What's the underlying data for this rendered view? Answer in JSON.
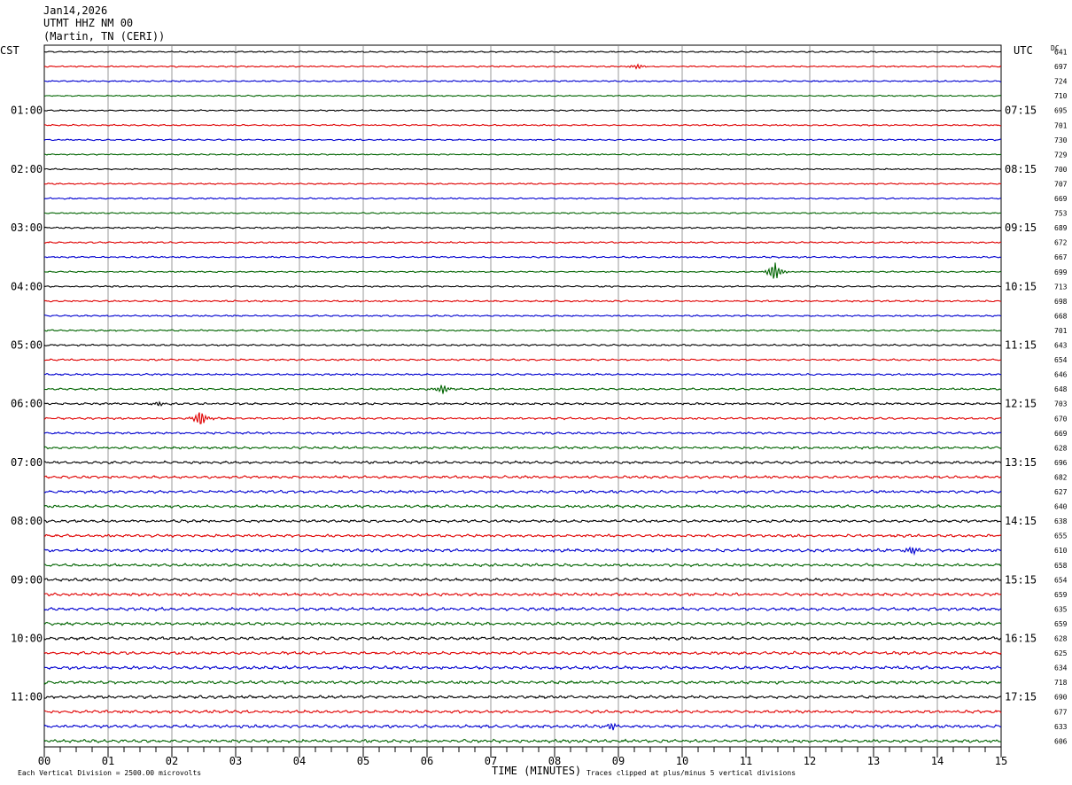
{
  "header": {
    "date": "Jan14,2026",
    "station": "UTMT HHZ NM 00",
    "location": "(Martin, TN (CERI))"
  },
  "left_timezone": "CST",
  "right_timezone": "UTC",
  "dc_label": "DC",
  "footer": {
    "scale_note": "Each Vertical Division = 2500.00 microvolts",
    "xlabel": "TIME (MINUTES)",
    "clip_note": "Traces clipped at plus/minus 5 vertical divisions"
  },
  "colors": {
    "trace_cycle": [
      "#000000",
      "#e00000",
      "#0000d0",
      "#006400"
    ],
    "grid": "#808080"
  },
  "chart_data": {
    "type": "line",
    "title": "UTMT HHZ NM 00",
    "xlabel": "TIME (MINUTES)",
    "xlim": [
      0,
      15
    ],
    "x_ticks": [
      "00",
      "01",
      "02",
      "03",
      "04",
      "05",
      "06",
      "07",
      "08",
      "09",
      "10",
      "11",
      "12",
      "13",
      "14",
      "15"
    ],
    "left_hour_labels": [
      "01:00",
      "02:00",
      "03:00",
      "04:00",
      "05:00",
      "06:00",
      "07:00",
      "08:00",
      "09:00",
      "10:00",
      "11:00"
    ],
    "right_hour_labels": [
      "07:15",
      "08:15",
      "09:15",
      "10:15",
      "11:15",
      "12:15",
      "13:15",
      "14:15",
      "15:15",
      "16:15",
      "17:15"
    ],
    "dc_offsets": [
      641,
      697,
      724,
      710,
      695,
      701,
      730,
      729,
      700,
      707,
      669,
      753,
      689,
      672,
      667,
      699,
      713,
      698,
      668,
      701,
      643,
      654,
      646,
      648,
      703,
      670,
      669,
      628,
      696,
      682,
      627,
      640,
      638,
      655,
      610,
      658,
      654,
      659,
      635,
      659,
      628,
      625,
      634,
      718,
      690,
      677,
      633,
      606
    ],
    "noise_level": [
      0.18,
      0.18,
      0.18,
      0.16,
      0.17,
      0.18,
      0.18,
      0.16,
      0.16,
      0.17,
      0.18,
      0.17,
      0.2,
      0.2,
      0.2,
      0.17,
      0.2,
      0.2,
      0.2,
      0.2,
      0.22,
      0.22,
      0.22,
      0.24,
      0.26,
      0.26,
      0.27,
      0.3,
      0.32,
      0.32,
      0.34,
      0.34,
      0.35,
      0.35,
      0.38,
      0.36,
      0.36,
      0.36,
      0.38,
      0.38,
      0.38,
      0.36,
      0.38,
      0.38,
      0.36,
      0.36,
      0.38,
      0.38
    ],
    "events": [
      {
        "trace": 15,
        "minute": 11.45,
        "amplitude": 3.0
      },
      {
        "trace": 25,
        "minute": 2.45,
        "amplitude": 2.4
      },
      {
        "trace": 23,
        "minute": 6.25,
        "amplitude": 1.4
      },
      {
        "trace": 34,
        "minute": 13.6,
        "amplitude": 1.3
      },
      {
        "trace": 46,
        "minute": 8.9,
        "amplitude": 1.0
      },
      {
        "trace": 1,
        "minute": 9.3,
        "amplitude": 0.8
      },
      {
        "trace": 24,
        "minute": 1.8,
        "amplitude": 0.7
      }
    ]
  }
}
